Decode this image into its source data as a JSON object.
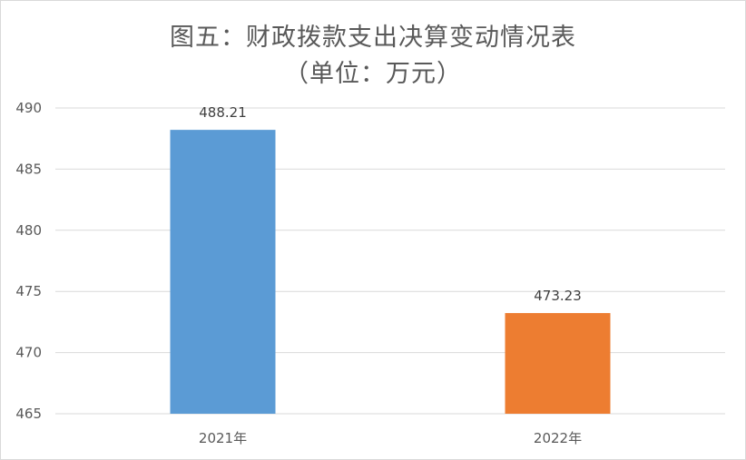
{
  "chart_data": {
    "type": "bar",
    "title": "图五：财政拨款支出决算变动情况表",
    "subtitle": "（单位：万元）",
    "xlabel": "",
    "ylabel": "",
    "categories": [
      "2021年",
      "2022年"
    ],
    "values": [
      488.21,
      473.23
    ],
    "data_labels": [
      "488.21",
      "473.23"
    ],
    "bar_colors": [
      "#5b9bd5",
      "#ed7d31"
    ],
    "ylim": [
      465,
      490
    ],
    "yticks": [
      465,
      470,
      475,
      480,
      485,
      490
    ],
    "grid": true,
    "legend": "none"
  },
  "colors": {
    "gridline": "#d9d9d9",
    "axis_text": "#595959",
    "title_text": "#595959",
    "label_text": "#404040"
  }
}
